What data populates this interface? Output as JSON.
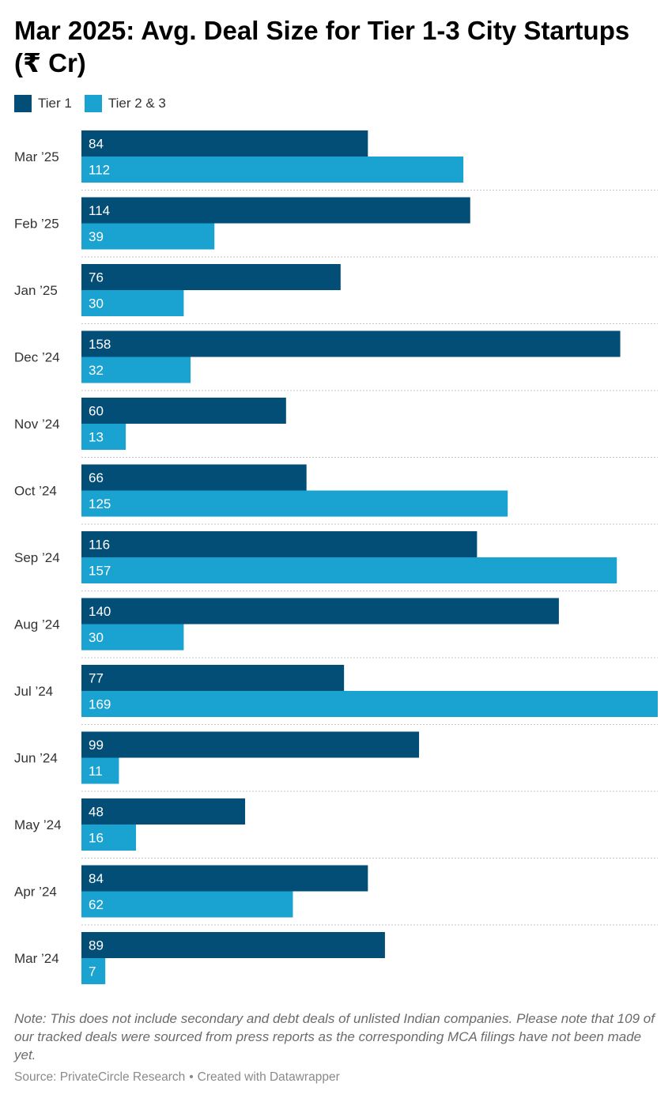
{
  "title": "Mar 2025: Avg. Deal Size for Tier 1-3 City Startups (₹ Cr)",
  "legend": [
    {
      "label": "Tier 1",
      "color": "#034e77"
    },
    {
      "label": "Tier 2 & 3",
      "color": "#1aa2d0"
    }
  ],
  "chart_data": {
    "type": "bar",
    "orientation": "horizontal",
    "categories": [
      "Mar ’25",
      "Feb ’25",
      "Jan ’25",
      "Dec ’24",
      "Nov ’24",
      "Oct ’24",
      "Sep ’24",
      "Aug ’24",
      "Jul ’24",
      "Jun ’24",
      "May ’24",
      "Apr ’24",
      "Mar ’24"
    ],
    "series": [
      {
        "name": "Tier 1",
        "color": "#034e77",
        "values": [
          84,
          114,
          76,
          158,
          60,
          66,
          116,
          140,
          77,
          99,
          48,
          84,
          89
        ]
      },
      {
        "name": "Tier 2 & 3",
        "color": "#1aa2d0",
        "values": [
          112,
          39,
          30,
          32,
          13,
          125,
          157,
          30,
          169,
          11,
          16,
          62,
          7
        ]
      }
    ],
    "xlim": [
      0,
      169
    ],
    "data_labels": "inside-bar-start",
    "legend_position": "top-left"
  },
  "note": "Note: This does not include secondary and debt deals of unlisted Indian companies. Please note that 109 of our tracked deals were sourced from press reports as the corresponding MCA filings have not been made yet.",
  "source": {
    "text": "Source: PrivateCircle Research",
    "separator": "•",
    "credit": "Created with Datawrapper"
  }
}
